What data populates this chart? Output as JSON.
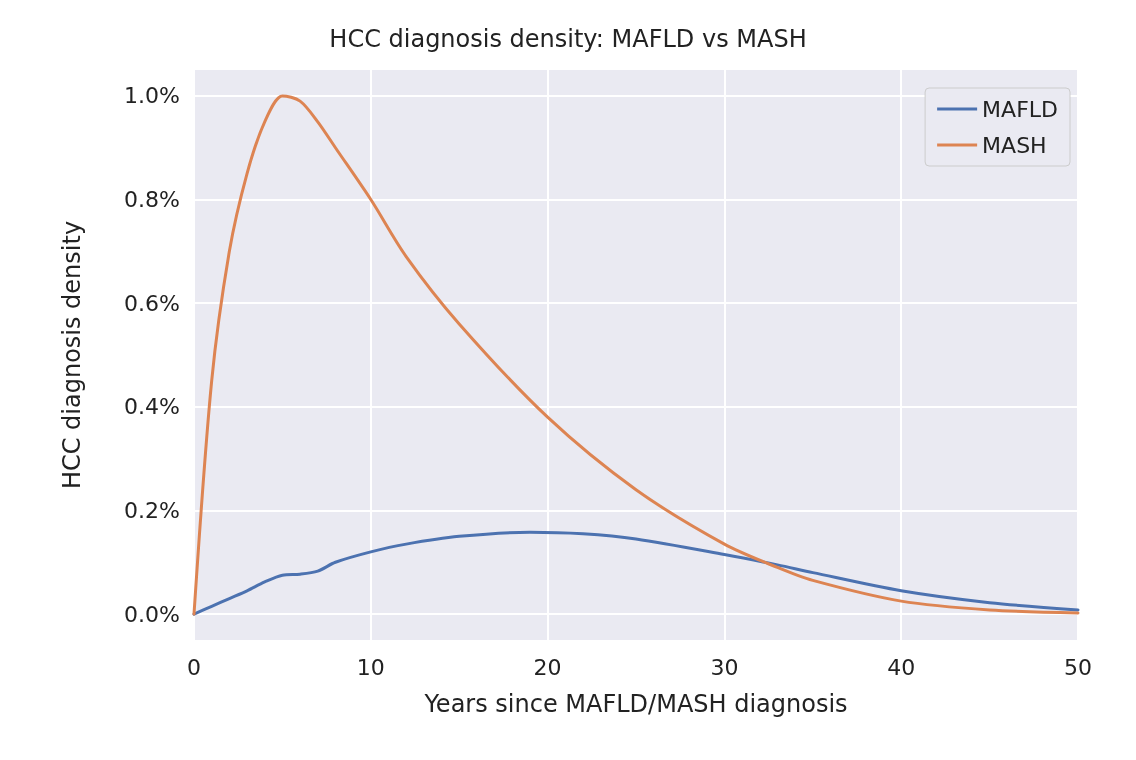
{
  "chart_data": {
    "type": "line",
    "title": "HCC diagnosis density: MAFLD vs MASH",
    "xlabel": "Years since MAFLD/MASH diagnosis",
    "ylabel": "HCC diagnosis density",
    "xlim": [
      0,
      50
    ],
    "xticks": [
      0,
      10,
      20,
      30,
      40,
      50
    ],
    "ylim": [
      -0.05,
      1.05
    ],
    "yticks": [
      {
        "value": 0,
        "label": "0.0%"
      },
      {
        "value": 0.2,
        "label": "0.2%"
      },
      {
        "value": 0.4,
        "label": "0.4%"
      },
      {
        "value": 0.6,
        "label": "0.6%"
      },
      {
        "value": 0.8,
        "label": "0.8%"
      },
      {
        "value": 1.0,
        "label": "1.0%"
      }
    ],
    "grid": true,
    "legend": "top right",
    "marker": "none",
    "line_style": "solid",
    "series": [
      {
        "name": "MAFLD",
        "color": "#4c72b0",
        "x": [
          0,
          1,
          2,
          3,
          4,
          5,
          6,
          7,
          8,
          10,
          12,
          15,
          19,
          22,
          25,
          30,
          33,
          35,
          40,
          45,
          50
        ],
        "values": [
          0,
          0.015,
          0.03,
          0.045,
          0.062,
          0.075,
          0.077,
          0.083,
          0.1,
          0.12,
          0.135,
          0.15,
          0.158,
          0.155,
          0.145,
          0.115,
          0.095,
          0.08,
          0.045,
          0.022,
          0.008
        ]
      },
      {
        "name": "MASH",
        "color": "#dd8452",
        "x": [
          0,
          1,
          2,
          3,
          4,
          5,
          6,
          7,
          8,
          10,
          12,
          15,
          20,
          25,
          30,
          33,
          35,
          40,
          45,
          50
        ],
        "values": [
          0,
          0.45,
          0.7,
          0.85,
          0.95,
          1.0,
          0.99,
          0.95,
          0.9,
          0.8,
          0.69,
          0.56,
          0.38,
          0.24,
          0.135,
          0.09,
          0.065,
          0.025,
          0.008,
          0.002
        ]
      }
    ]
  }
}
